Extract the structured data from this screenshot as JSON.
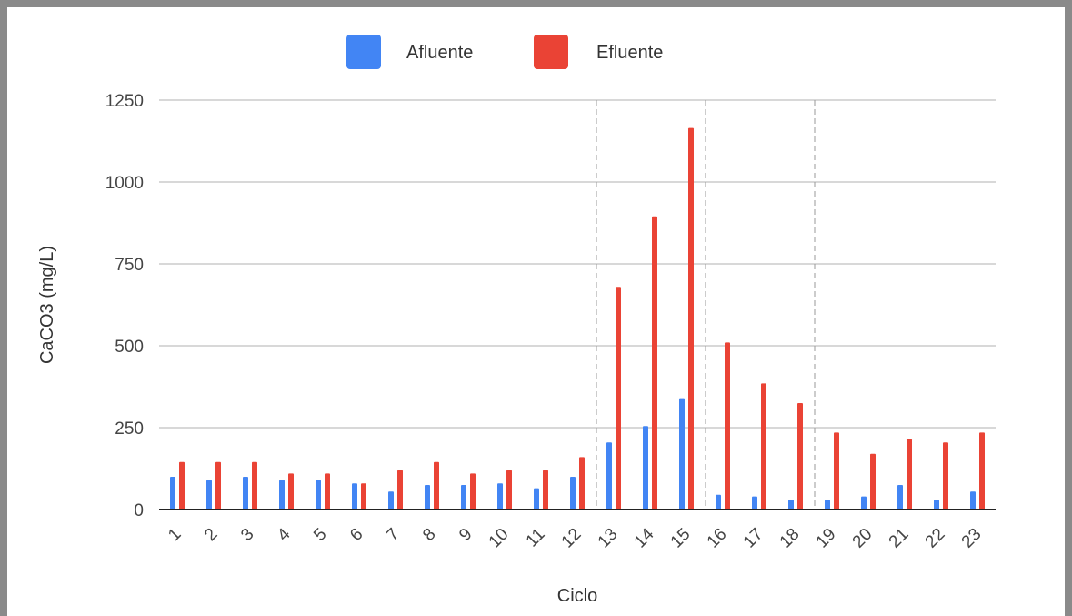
{
  "chart_data": {
    "type": "bar",
    "title": "",
    "xlabel": "Ciclo",
    "ylabel": "CaCO3 (mg/L)",
    "ylim": [
      0,
      1250
    ],
    "yticks": [
      0,
      250,
      500,
      750,
      1000,
      1250
    ],
    "grid": true,
    "legend_position": "top",
    "categories": [
      "1",
      "2",
      "3",
      "4",
      "5",
      "6",
      "7",
      "8",
      "9",
      "10",
      "11",
      "12",
      "13",
      "14",
      "15",
      "16",
      "17",
      "18",
      "19",
      "20",
      "21",
      "22",
      "23"
    ],
    "series": [
      {
        "name": "Afluente",
        "color": "#4285f4",
        "values": [
          100,
          90,
          100,
          90,
          90,
          80,
          55,
          75,
          75,
          80,
          65,
          100,
          205,
          255,
          340,
          45,
          40,
          30,
          30,
          40,
          75,
          30,
          55
        ]
      },
      {
        "name": "Efluente",
        "color": "#ea4335",
        "values": [
          145,
          145,
          145,
          110,
          110,
          80,
          120,
          145,
          110,
          120,
          120,
          160,
          680,
          895,
          1165,
          510,
          385,
          325,
          235,
          170,
          215,
          205,
          235
        ]
      }
    ],
    "vertical_dividers_after_category": [
      "12",
      "15",
      "18"
    ]
  }
}
